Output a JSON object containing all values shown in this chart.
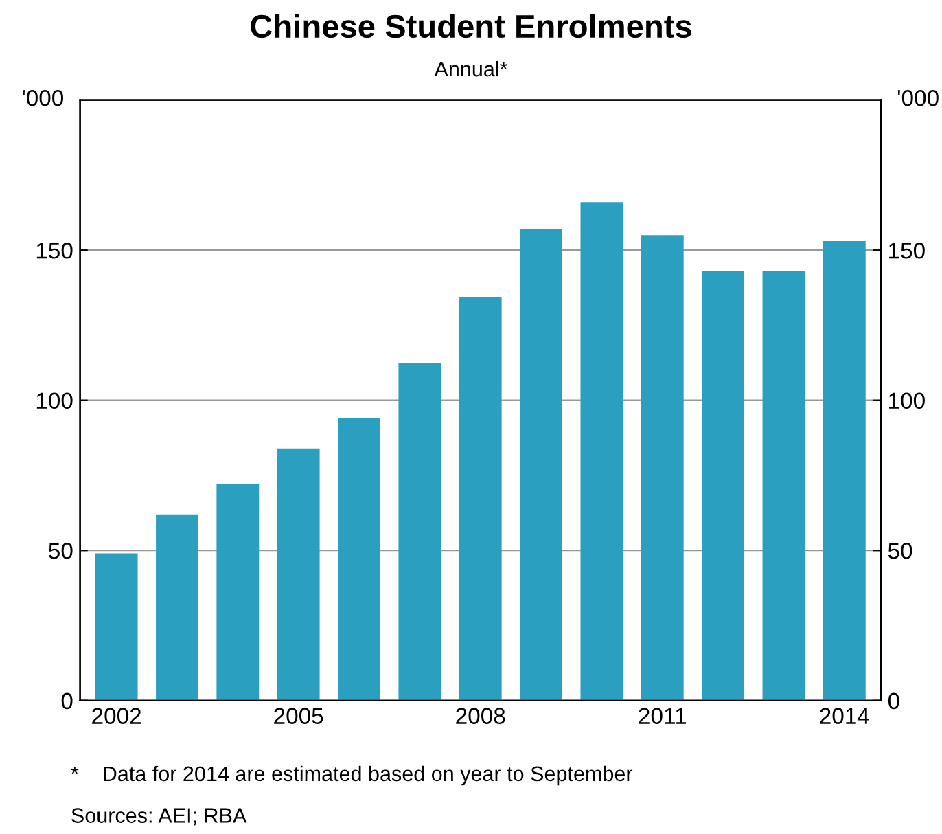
{
  "chart_data": {
    "type": "bar",
    "title": "Chinese Student Enrolments",
    "subtitle": "Annual*",
    "ylabel": "'000",
    "y2label": "'000",
    "categories": [
      "2002",
      null,
      null,
      "2005",
      null,
      null,
      "2008",
      null,
      null,
      "2011",
      null,
      null,
      "2014"
    ],
    "values": [
      49,
      62,
      72,
      84,
      94,
      112.5,
      134.5,
      157,
      166,
      155,
      143,
      143,
      153
    ],
    "color": "#2b9fc0",
    "ylim": [
      0,
      200
    ],
    "yticks": [
      0,
      50,
      100,
      150
    ],
    "y2lim": [
      0,
      200
    ],
    "y2ticks": [
      0,
      50,
      100,
      150
    ],
    "grid": "y",
    "legend": false,
    "annotations": [
      "*    Data for 2014 are estimated based on year to September",
      "Sources: AEI; RBA"
    ]
  }
}
